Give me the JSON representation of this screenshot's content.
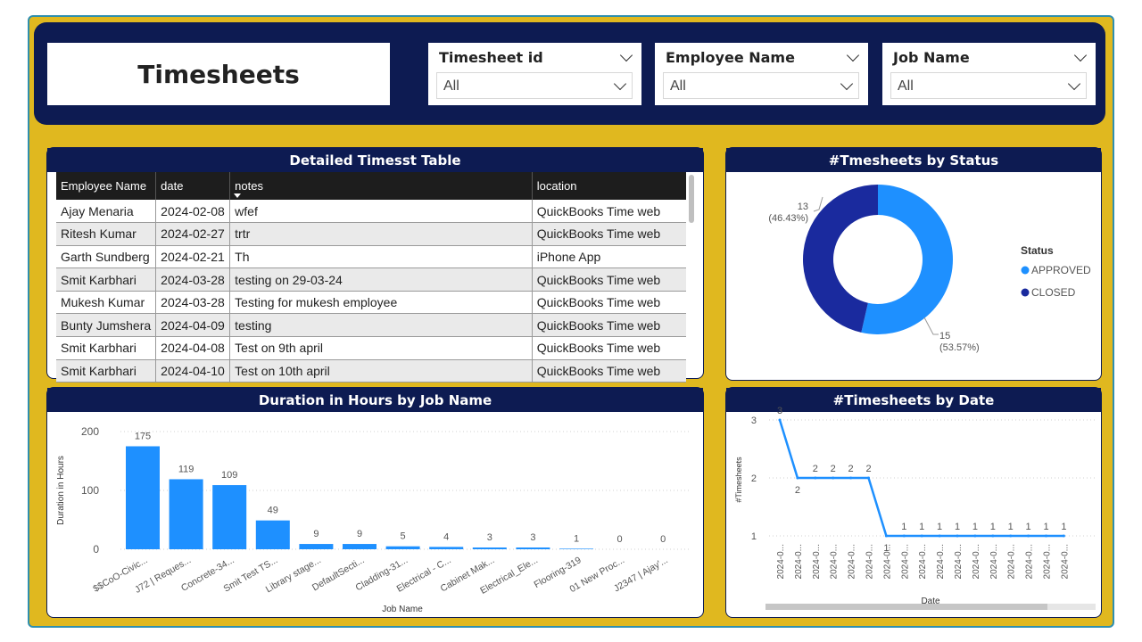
{
  "header": {
    "title": "Timesheets",
    "slicers": [
      {
        "label": "Timesheet id",
        "value": "All"
      },
      {
        "label": "Employee Name",
        "value": "All"
      },
      {
        "label": "Job Name",
        "value": "All"
      }
    ]
  },
  "table_panel": {
    "title": "Detailed Timesst Table",
    "columns": [
      "Employee Name",
      "date",
      "notes",
      "location"
    ],
    "rows": [
      [
        "Ajay Menaria",
        "2024-02-08",
        "wfef",
        "QuickBooks Time web"
      ],
      [
        "Ritesh Kumar",
        "2024-02-27",
        "trtr",
        "QuickBooks Time web"
      ],
      [
        "Garth Sundberg",
        "2024-02-21",
        "Th",
        "iPhone App"
      ],
      [
        "Smit Karbhari",
        "2024-03-28",
        "testing on 29-03-24",
        "QuickBooks Time web"
      ],
      [
        "Mukesh Kumar",
        "2024-03-28",
        "Testing for mukesh employee",
        "QuickBooks Time web"
      ],
      [
        "Bunty Jumshera",
        "2024-04-09",
        "testing",
        "QuickBooks Time web"
      ],
      [
        "Smit Karbhari",
        "2024-04-08",
        "Test on 9th april",
        "QuickBooks Time web"
      ],
      [
        "Smit Karbhari",
        "2024-04-10",
        "Test on 10th april",
        "QuickBooks Time web"
      ]
    ]
  },
  "status_panel": {
    "title": "#Tmesheets by Status",
    "legend_title": "Status",
    "colors": {
      "approved": "#1e90ff",
      "closed": "#1a2a9e"
    },
    "chart_data": {
      "type": "pie",
      "categories": [
        "APPROVED",
        "CLOSED"
      ],
      "values": [
        15,
        13
      ],
      "labels": [
        "15\n(53.57%)",
        "13\n(46.43%)"
      ],
      "label_lines": [
        [
          "15",
          "(53.57%)"
        ],
        [
          "13",
          "(46.43%)"
        ]
      ],
      "legend": "right"
    }
  },
  "job_panel": {
    "title": "Duration in Hours by Job Name",
    "bar_color": "#1e90ff",
    "chart_data": {
      "type": "bar",
      "categories": [
        "$$CoO-Civic...",
        "J72 | Reques...",
        "Concrete-34...",
        "Smit Test TS...",
        "Library stage...",
        "DefaultSecti...",
        "Cladding-31...",
        "Electrical - C...",
        "Cabinet Mak...",
        "Electrical_Ele...",
        "Flooring-319",
        "01 New Proc...",
        "J2347 | Ajay'..."
      ],
      "values": [
        175,
        119,
        109,
        49,
        9,
        9,
        5,
        4,
        3,
        3,
        1,
        0,
        0
      ],
      "xlabel": "Job Name",
      "ylabel": "Duration in Hours",
      "yticks": [
        0,
        100,
        200
      ],
      "ylim": [
        0,
        200
      ]
    }
  },
  "date_panel": {
    "title": "#Timesheets by Date",
    "line_color": "#1e90ff",
    "chart_data": {
      "type": "line",
      "x": [
        "2024-0...",
        "2024-0...",
        "2024-0...",
        "2024-0...",
        "2024-0...",
        "2024-0...",
        "2024-0...",
        "2024-0...",
        "2024-0...",
        "2024-0...",
        "2024-0...",
        "2024-0...",
        "2024-0...",
        "2024-0...",
        "2024-0...",
        "2024-0...",
        "2024-0..."
      ],
      "values": [
        3,
        2,
        2,
        2,
        2,
        2,
        1,
        1,
        1,
        1,
        1,
        1,
        1,
        1,
        1,
        1,
        1
      ],
      "xlabel": "Date",
      "ylabel": "#Timesheets",
      "yticks": [
        1,
        2,
        3
      ],
      "ylim": [
        1,
        3
      ]
    }
  }
}
